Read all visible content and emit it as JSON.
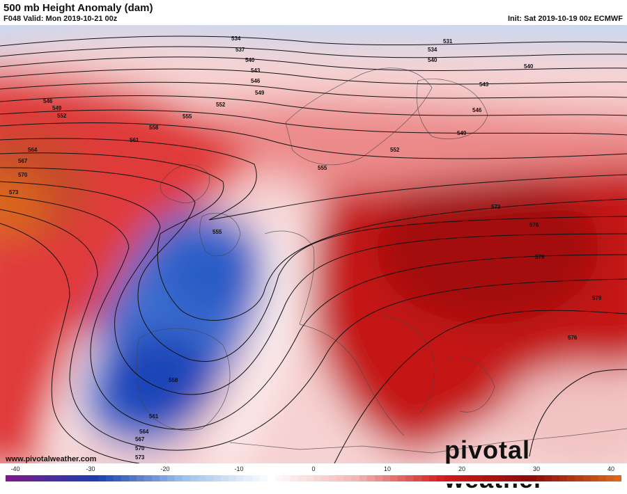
{
  "title": "500 mb Height Anomaly (dam)",
  "valid": "F048 Valid: Mon 2019-10-21 00z",
  "init": "Init: Sat 2019-10-19 00z ECMWF",
  "website": "www.pivotalweather.com",
  "logo": "pivotal weather",
  "contour_labels": [
    "534",
    "537",
    "540",
    "543",
    "546",
    "549",
    "552",
    "555",
    "558",
    "561",
    "564",
    "567",
    "570",
    "573",
    "576",
    "579",
    "531"
  ],
  "colorbar": {
    "ticks": [
      "-40",
      "-30",
      "-20",
      "-10",
      "0",
      "10",
      "20",
      "30",
      "40"
    ],
    "colors": {
      "strong_negative": "#7a1a8c",
      "negative": "#1c3fb0",
      "weak_negative": "#9cc1ea",
      "neutral": "#ffffff",
      "weak_positive": "#f4b4b4",
      "positive": "#d21b1b",
      "strong_positive": "#8a0b0b",
      "extreme_positive": "#d9661d"
    }
  }
}
